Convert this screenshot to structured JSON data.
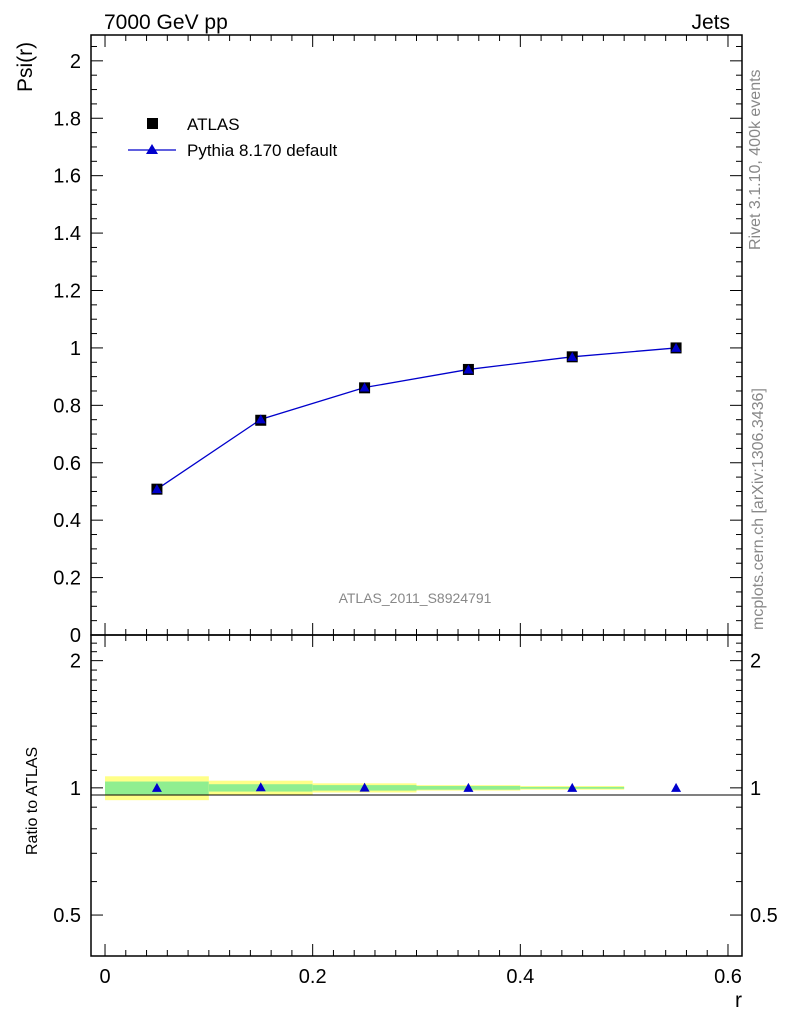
{
  "header": {
    "left": "7000 GeV pp",
    "right": "Jets"
  },
  "side_labels": {
    "rivet": "Rivet 3.1.10,  400k events",
    "mcplots": "mcplots.cern.ch [arXiv:1306.3436]"
  },
  "watermark": "ATLAS_2011_S8924791",
  "chart_data": [
    {
      "type": "scatter",
      "panel": "main",
      "ylabel": "Psi(r)",
      "xlim": [
        -0.0135,
        0.6135
      ],
      "ylim": [
        0,
        2.09
      ],
      "x_ticks": [
        0,
        0.2,
        0.4,
        0.6
      ],
      "y_ticks": [
        0,
        0.2,
        0.4,
        0.6,
        0.8,
        1,
        1.2,
        1.4,
        1.6,
        1.8,
        2
      ],
      "y_tick_labels": [
        "0",
        "0.2",
        "0.4",
        "0.6",
        "0.8",
        "1",
        "1.2",
        "1.4",
        "1.6",
        "1.8",
        "2"
      ],
      "legend_position": "top-left",
      "series": [
        {
          "name": "ATLAS",
          "marker": "square",
          "color": "#000000",
          "x": [
            0.05,
            0.15,
            0.25,
            0.35,
            0.45,
            0.55
          ],
          "y": [
            0.508,
            0.748,
            0.861,
            0.925,
            0.969,
            1.0
          ]
        },
        {
          "name": "Pythia 8.170 default",
          "marker": "triangle",
          "color": "#0000cc",
          "x": [
            0.05,
            0.15,
            0.25,
            0.35,
            0.45,
            0.55
          ],
          "y": [
            0.508,
            0.751,
            0.862,
            0.925,
            0.969,
            1.0
          ]
        }
      ]
    },
    {
      "type": "scatter",
      "panel": "ratio",
      "xlabel": "r",
      "ylabel": "Ratio to ATLAS",
      "xlim": [
        -0.0135,
        0.6135
      ],
      "ylim": [
        0.4,
        2.3
      ],
      "y_scale": "log",
      "x_ticks": [
        0,
        0.2,
        0.4,
        0.6
      ],
      "x_tick_labels": [
        "0",
        "0.2",
        "0.4",
        "0.6"
      ],
      "y_ticks": [
        0.5,
        1,
        2
      ],
      "y_tick_labels": [
        "0.5",
        "1",
        "2"
      ],
      "bands": [
        {
          "x0": 0.0,
          "x1": 0.1,
          "inner": [
            0.965,
            1.035
          ],
          "outer": [
            0.935,
            1.065
          ]
        },
        {
          "x0": 0.1,
          "x1": 0.2,
          "inner": [
            0.98,
            1.02
          ],
          "outer": [
            0.96,
            1.04
          ]
        },
        {
          "x0": 0.2,
          "x1": 0.3,
          "inner": [
            0.985,
            1.015
          ],
          "outer": [
            0.975,
            1.025
          ]
        },
        {
          "x0": 0.3,
          "x1": 0.4,
          "inner": [
            0.99,
            1.01
          ],
          "outer": [
            0.985,
            1.015
          ]
        },
        {
          "x0": 0.4,
          "x1": 0.5,
          "inner": [
            0.995,
            1.005
          ],
          "outer": [
            0.99,
            1.01
          ]
        }
      ],
      "band_colors": {
        "inner": "#90ee90",
        "outer": "#ffff88"
      },
      "series": [
        {
          "name": "Pythia 8.170 default",
          "marker": "triangle",
          "color": "#0000cc",
          "x": [
            0.05,
            0.15,
            0.25,
            0.35,
            0.45,
            0.55
          ],
          "y": [
            1.0,
            1.003,
            1.001,
            1.0,
            1.0,
            1.0
          ]
        }
      ]
    }
  ]
}
